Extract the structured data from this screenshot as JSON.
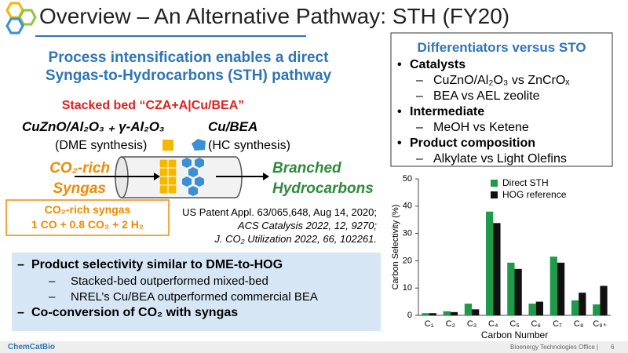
{
  "header": {
    "title": "Overview – An Alternative Pathway: STH (FY20)"
  },
  "left": {
    "heading": [
      "Process intensification enables a direct",
      "Syngas-to-Hydrocarbons (STH) pathway"
    ],
    "stack_label": "Stacked bed “CZA+A|Cu/BEA”",
    "cza_label": "CuZnO/Al₂O₃ ₊ γ-Al₂O₃",
    "cza_role": "(DME synthesis)",
    "cu_label": "Cu/BEA",
    "cu_role": "(HC synthesis)",
    "feed": [
      "CO₂-rich",
      "Syngas"
    ],
    "product": [
      "Branched",
      "Hydrocarbons"
    ],
    "feed_box": [
      "CO₂-rich syngas",
      "1 CO + 0.8 CO₂ + 2 H₂"
    ],
    "references": [
      "US Patent Appl. 63/065,648, Aug 14, 2020;",
      "ACS Catalysis 2022, 12, 9270;",
      "J. CO₂ Utilization 2022, 66, 102261."
    ]
  },
  "summary": {
    "items": [
      {
        "text": "Product selectivity similar to DME-to-HOG",
        "subitems": [
          "Stacked-bed outperformed mixed-bed",
          "NREL’s Cu/BEA outperformed commercial BEA"
        ]
      },
      {
        "text": "Co-conversion of CO₂ with syngas",
        "subitems": []
      }
    ]
  },
  "differentiators": {
    "title": "Differentiators versus STO",
    "groups": [
      {
        "heading": "Catalysts",
        "items": [
          "CuZnO/Al₂O₃ vs ZnCrOₓ",
          "BEA vs AEL zeolite"
        ]
      },
      {
        "heading": "Intermediate",
        "items": [
          "MeOH vs Ketene"
        ]
      },
      {
        "heading": "Product composition",
        "items": [
          "Alkylate vs Light Olefins"
        ]
      }
    ]
  },
  "chart_data": {
    "type": "bar",
    "x_label": "Carbon Number",
    "y_label": "Carbon Selectivity (%)",
    "categories": [
      "C₁",
      "C₂",
      "C₃",
      "C₄",
      "C₅",
      "C₆",
      "C₇",
      "C₈",
      "C₉₊"
    ],
    "series": [
      {
        "name": "Direct STH",
        "color": "#1e9a4b",
        "values": [
          0.8,
          1.5,
          4.3,
          38,
          19.3,
          4.3,
          21.5,
          5.5,
          4
        ]
      },
      {
        "name": "HOG reference",
        "color": "#111111",
        "values": [
          0.8,
          1.2,
          2.2,
          33.8,
          17,
          5,
          19.3,
          8.3,
          10.8
        ]
      }
    ],
    "ylim": [
      0,
      50
    ],
    "yticks": [
      0,
      10,
      20,
      30,
      40,
      50
    ],
    "legend": "upper right"
  },
  "footer": {
    "brand": "ChemCatBio",
    "office": "Bioenergy Technologies Office |",
    "page": "6"
  }
}
